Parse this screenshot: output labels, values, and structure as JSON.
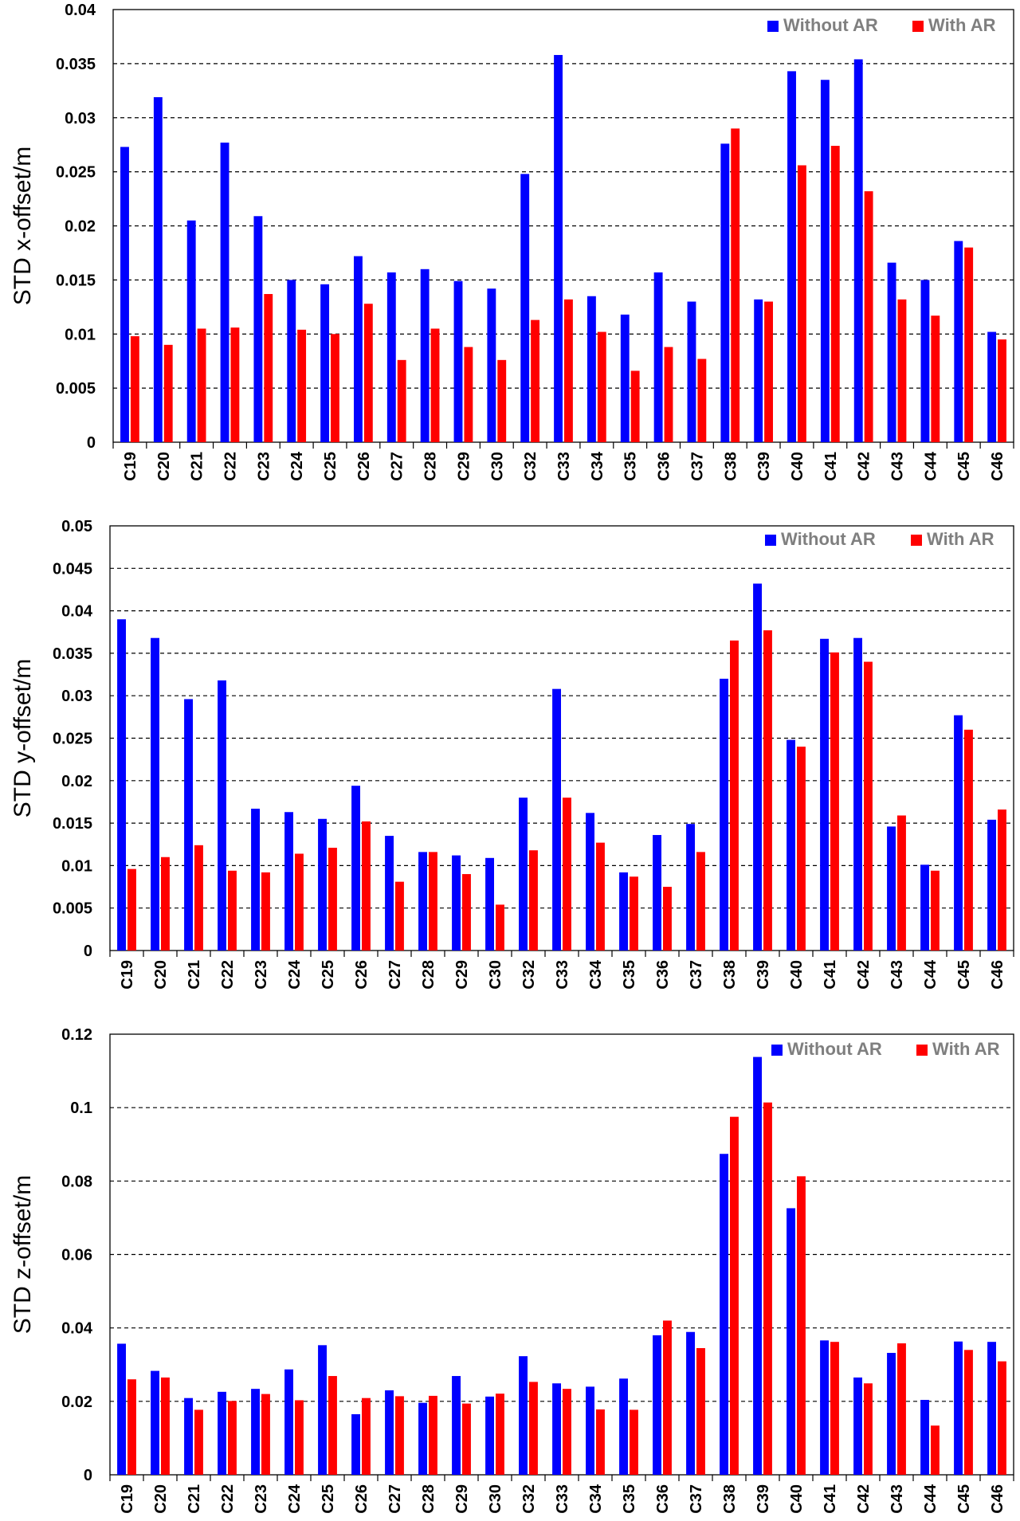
{
  "colors": {
    "without_ar": "#0000ff",
    "with_ar": "#ff0000",
    "axis": "#000000",
    "grid": "#000000"
  },
  "chart_data": [
    {
      "type": "bar",
      "title": "",
      "xlabel": "",
      "ylabel": "STD  x-offset/m",
      "ylim": [
        0,
        0.04
      ],
      "yticks": [
        0,
        0.005,
        0.01,
        0.015,
        0.02,
        0.025,
        0.03,
        0.035,
        0.04
      ],
      "ytick_labels": [
        "0",
        "0.005",
        "0.01",
        "0.015",
        "0.02",
        "0.025",
        "0.03",
        "0.035",
        "0.04"
      ],
      "grid": true,
      "legend_position": "top-right",
      "categories": [
        "C19",
        "C20",
        "C21",
        "C22",
        "C23",
        "C24",
        "C25",
        "C26",
        "C27",
        "C28",
        "C29",
        "C30",
        "C32",
        "C33",
        "C34",
        "C35",
        "C36",
        "C37",
        "C38",
        "C39",
        "C40",
        "C41",
        "C42",
        "C43",
        "C44",
        "C45",
        "C46"
      ],
      "series": [
        {
          "name": "Without AR",
          "values": [
            0.0273,
            0.0319,
            0.0205,
            0.0277,
            0.0209,
            0.015,
            0.0146,
            0.0172,
            0.0157,
            0.016,
            0.0149,
            0.0142,
            0.0248,
            0.0358,
            0.0135,
            0.0118,
            0.0157,
            0.013,
            0.0276,
            0.0132,
            0.0343,
            0.0335,
            0.0354,
            0.0166,
            0.015,
            0.0186,
            0.0102
          ]
        },
        {
          "name": "With AR",
          "values": [
            0.0098,
            0.009,
            0.0105,
            0.0106,
            0.0137,
            0.0104,
            0.01,
            0.0128,
            0.0076,
            0.0105,
            0.0088,
            0.0076,
            0.0113,
            0.0132,
            0.0102,
            0.0066,
            0.0088,
            0.0077,
            0.029,
            0.013,
            0.0256,
            0.0274,
            0.0232,
            0.0132,
            0.0117,
            0.018,
            0.0095
          ]
        }
      ]
    },
    {
      "type": "bar",
      "title": "",
      "xlabel": "",
      "ylabel": "STD  y-offset/m",
      "ylim": [
        0,
        0.05
      ],
      "yticks": [
        0,
        0.005,
        0.01,
        0.015,
        0.02,
        0.025,
        0.03,
        0.035,
        0.04,
        0.045,
        0.05
      ],
      "ytick_labels": [
        "0",
        "0.005",
        "0.01",
        "0.015",
        "0.02",
        "0.025",
        "0.03",
        "0.035",
        "0.04",
        "0.045",
        "0.05"
      ],
      "grid": true,
      "legend_position": "top-right",
      "categories": [
        "C19",
        "C20",
        "C21",
        "C22",
        "C23",
        "C24",
        "C25",
        "C26",
        "C27",
        "C28",
        "C29",
        "C30",
        "C32",
        "C33",
        "C34",
        "C35",
        "C36",
        "C37",
        "C38",
        "C39",
        "C40",
        "C41",
        "C42",
        "C43",
        "C44",
        "C45",
        "C46"
      ],
      "series": [
        {
          "name": "Without AR",
          "values": [
            0.039,
            0.0368,
            0.0296,
            0.0318,
            0.0167,
            0.0163,
            0.0155,
            0.0194,
            0.0135,
            0.0116,
            0.0112,
            0.0109,
            0.018,
            0.0308,
            0.0162,
            0.0092,
            0.0136,
            0.0149,
            0.032,
            0.0432,
            0.0248,
            0.0367,
            0.0368,
            0.0146,
            0.0101,
            0.0277,
            0.0154
          ]
        },
        {
          "name": "With AR",
          "values": [
            0.0096,
            0.011,
            0.0124,
            0.0094,
            0.0092,
            0.0114,
            0.0121,
            0.0152,
            0.0081,
            0.0116,
            0.009,
            0.0054,
            0.0118,
            0.018,
            0.0127,
            0.0087,
            0.0075,
            0.0116,
            0.0365,
            0.0377,
            0.024,
            0.0351,
            0.034,
            0.0159,
            0.0094,
            0.026,
            0.0166
          ]
        }
      ]
    },
    {
      "type": "bar",
      "title": "",
      "xlabel": "",
      "ylabel": "STD  z-offset/m",
      "ylim": [
        0,
        0.12
      ],
      "yticks": [
        0,
        0.02,
        0.04,
        0.06,
        0.08,
        0.1,
        0.12
      ],
      "ytick_labels": [
        "0",
        "0.02",
        "0.04",
        "0.06",
        "0.08",
        "0.1",
        "0.12"
      ],
      "grid": true,
      "legend_position": "top-right",
      "categories": [
        "C19",
        "C20",
        "C21",
        "C22",
        "C23",
        "C24",
        "C25",
        "C26",
        "C27",
        "C28",
        "C29",
        "C30",
        "C32",
        "C33",
        "C34",
        "C35",
        "C36",
        "C37",
        "C38",
        "C39",
        "C40",
        "C41",
        "C42",
        "C43",
        "C44",
        "C45",
        "C46"
      ],
      "series": [
        {
          "name": "Without AR",
          "values": [
            0.0357,
            0.0283,
            0.0209,
            0.0226,
            0.0234,
            0.0287,
            0.0353,
            0.0165,
            0.023,
            0.0196,
            0.0269,
            0.0213,
            0.0323,
            0.0249,
            0.024,
            0.0262,
            0.038,
            0.0389,
            0.0874,
            0.1138,
            0.0726,
            0.0366,
            0.0265,
            0.0332,
            0.0204,
            0.0363,
            0.0362
          ]
        },
        {
          "name": "With AR",
          "values": [
            0.026,
            0.0265,
            0.0177,
            0.0201,
            0.022,
            0.0203,
            0.0269,
            0.0209,
            0.0214,
            0.0215,
            0.0194,
            0.0221,
            0.0253,
            0.0234,
            0.0178,
            0.0177,
            0.042,
            0.0345,
            0.0975,
            0.1014,
            0.0813,
            0.0362,
            0.0249,
            0.0358,
            0.0134,
            0.034,
            0.0309
          ]
        }
      ]
    }
  ]
}
